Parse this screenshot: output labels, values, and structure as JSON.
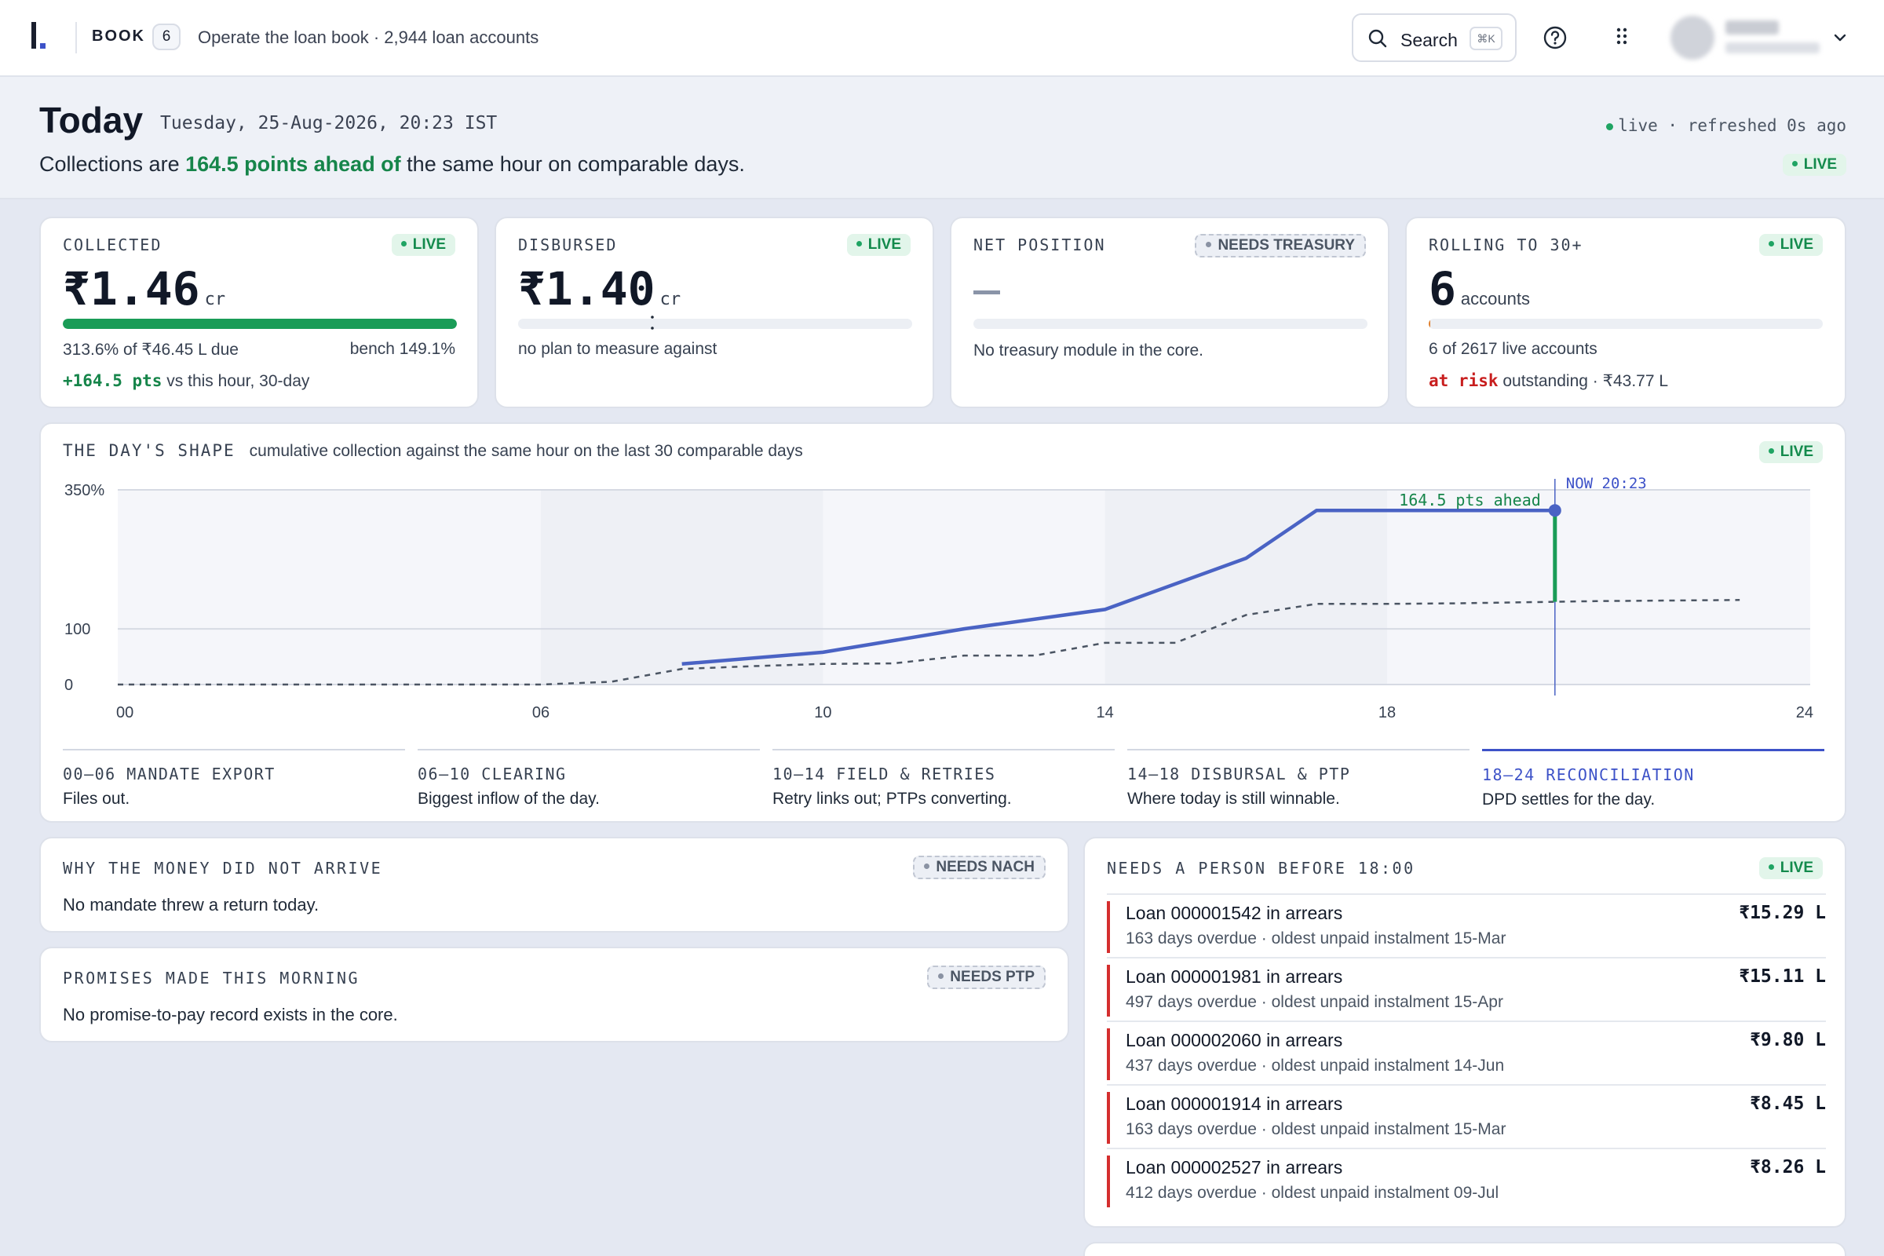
{
  "header": {
    "book_label": "BOOK",
    "book_count": "6",
    "title": "Operate the loan book · 2,944 loan accounts",
    "search_label": "Search",
    "search_shortcut": "⌘K",
    "icons": [
      "search-icon",
      "help-icon",
      "apps-grid-icon",
      "chevron-down-icon"
    ]
  },
  "today": {
    "title": "Today",
    "date": "Tuesday, 25-Aug-2026, 20:23 IST",
    "summary_pre": "Collections are ",
    "summary_highlight": "164.5 points ahead of",
    "summary_post": " the same hour on comparable days.",
    "status": "live · refreshed 0s ago",
    "live_badge": "LIVE"
  },
  "kpis": [
    {
      "label": "COLLECTED",
      "badge": "LIVE",
      "value": "₹1.46",
      "unit": "cr",
      "progress": 1.0,
      "line1": "313.6% of ₹46.45 L due",
      "line1_right": "bench 149.1%",
      "line2_hl": "+164.5 pts",
      "line2_rest": " vs this hour, 30-day"
    },
    {
      "label": "DISBURSED",
      "badge": "LIVE",
      "value": "₹1.40",
      "unit": "cr",
      "progress": 0,
      "line1": "no plan to measure against"
    },
    {
      "label": "NET POSITION",
      "badge": "NEEDS TREASURY",
      "line1": "No treasury module in the core."
    },
    {
      "label": "ROLLING TO 30+",
      "badge": "LIVE",
      "value": "6",
      "unit": "accounts",
      "progress": 0.0023,
      "line1": "6 of 2617 live accounts",
      "line2_hl": "at risk",
      "line2_rest": " outstanding · ₹43.77 L"
    }
  ],
  "day_shape": {
    "title": "THE DAY'S SHAPE",
    "subtitle": "cumulative collection against the same hour on the last 30 comparable days",
    "badge": "LIVE",
    "ahead_label": "164.5 pts ahead",
    "now_label": "NOW 20:23",
    "phases": [
      {
        "title": "00–06 MANDATE EXPORT",
        "desc": "Files out."
      },
      {
        "title": "06–10 CLEARING",
        "desc": "Biggest inflow of the day."
      },
      {
        "title": "10–14 FIELD & RETRIES",
        "desc": "Retry links out; PTPs converting."
      },
      {
        "title": "14–18 DISBURSAL & PTP",
        "desc": "Where today is still winnable."
      },
      {
        "title": "18–24 RECONCILIATION",
        "desc": "DPD settles for the day.",
        "active": true
      }
    ]
  },
  "chart_data": {
    "type": "line",
    "title": "THE DAY'S SHAPE",
    "subtitle": "cumulative collection against the same hour on the last 30 comparable days",
    "xlim": [
      0,
      24
    ],
    "x_ticks": [
      "00",
      "06",
      "10",
      "14",
      "18",
      "24"
    ],
    "x_tick_values": [
      0,
      6,
      10,
      14,
      18,
      24
    ],
    "ylim": [
      0,
      350
    ],
    "y_ticks": [
      "0",
      "100",
      "350%"
    ],
    "y_tick_values": [
      0,
      100,
      350
    ],
    "now_x": 20.38,
    "series": [
      {
        "style": "solid",
        "color": "#4a63c4",
        "x": [
          8,
          10,
          12,
          14,
          16,
          17,
          20.38
        ],
        "y": [
          37,
          58,
          100,
          135,
          227,
          313,
          313
        ]
      },
      {
        "style": "dashed",
        "color": "#4b5563",
        "x": [
          0,
          6,
          7,
          8,
          9,
          10,
          11,
          12,
          13,
          14,
          15,
          16,
          17,
          18,
          19,
          20,
          21,
          22,
          23
        ],
        "y": [
          0,
          0,
          5,
          28,
          33,
          37,
          38,
          52,
          52,
          75,
          75,
          125,
          145,
          145,
          146,
          148,
          150,
          151,
          152
        ]
      }
    ]
  },
  "why": {
    "title": "WHY THE MONEY DID NOT ARRIVE",
    "badge": "NEEDS NACH",
    "text": "No mandate threw a return today."
  },
  "promises": {
    "title": "PROMISES MADE THIS MORNING",
    "badge": "NEEDS PTP",
    "text": "No promise-to-pay record exists in the core."
  },
  "needs_person": {
    "title": "NEEDS A PERSON BEFORE 18:00",
    "badge": "LIVE",
    "items": [
      {
        "title": "Loan 000001542 in arrears",
        "sub": "163 days overdue · oldest unpaid instalment 15-Mar",
        "amount": "₹15.29 L"
      },
      {
        "title": "Loan 000001981 in arrears",
        "sub": "497 days overdue · oldest unpaid instalment 15-Apr",
        "amount": "₹15.11 L"
      },
      {
        "title": "Loan 000002060 in arrears",
        "sub": "437 days overdue · oldest unpaid instalment 14-Jun",
        "amount": "₹9.80 L"
      },
      {
        "title": "Loan 000001914 in arrears",
        "sub": "163 days overdue · oldest unpaid instalment 15-Mar",
        "amount": "₹8.45 L"
      },
      {
        "title": "Loan 000002527 in arrears",
        "sub": "412 days overdue · oldest unpaid instalment 09-Jul",
        "amount": "₹8.26 L"
      }
    ]
  },
  "colors": {
    "accent": "#3d52c8",
    "positive": "#16854a",
    "negative": "#c81e1e",
    "live": "#1fa463"
  }
}
